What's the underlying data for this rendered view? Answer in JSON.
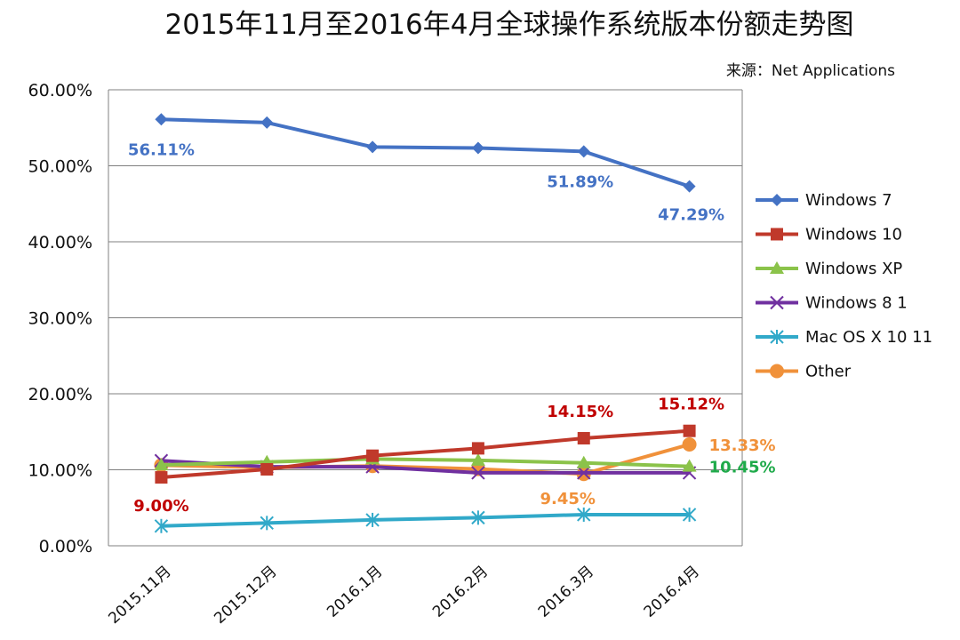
{
  "chart_data": {
    "type": "line",
    "title": "2015年11月至2016年4月全球操作系统版本份额走势图",
    "source": "来源：Net Applications",
    "categories": [
      "2015.11月",
      "2015.12月",
      "2016.1月",
      "2016.2月",
      "2016.3月",
      "2016.4月"
    ],
    "yticks": [
      "0.00%",
      "10.00%",
      "20.00%",
      "30.00%",
      "40.00%",
      "50.00%",
      "60.00%"
    ],
    "ylim": [
      0,
      60
    ],
    "grid": true,
    "legend_position": "right",
    "series": [
      {
        "name": "Windows 7",
        "color": "#4472c4",
        "marker": "diamond",
        "values": [
          56.11,
          55.68,
          52.47,
          52.34,
          51.89,
          47.29
        ]
      },
      {
        "name": "Windows 10",
        "color": "#c0392b",
        "marker": "square",
        "values": [
          9.0,
          10.06,
          11.85,
          12.82,
          14.15,
          15.12
        ]
      },
      {
        "name": "Windows XP",
        "color": "#8bc34a",
        "marker": "triangle",
        "values": [
          10.63,
          11.03,
          11.42,
          11.24,
          10.9,
          10.45
        ]
      },
      {
        "name": "Windows 8 1",
        "color": "#7030a0",
        "marker": "x",
        "values": [
          11.2,
          10.4,
          10.4,
          9.6,
          9.6,
          9.6
        ]
      },
      {
        "name": "Mac OS X 10 11",
        "color": "#31a9c9",
        "marker": "star",
        "values": [
          2.6,
          3.0,
          3.4,
          3.7,
          4.1,
          4.1
        ]
      },
      {
        "name": "Other",
        "color": "#f0913a",
        "marker": "circle",
        "values": [
          10.6,
          10.3,
          10.5,
          10.1,
          9.45,
          13.33
        ]
      }
    ],
    "annotations": [
      {
        "text": "56.11%",
        "color": "#4472c4"
      },
      {
        "text": "51.89%",
        "color": "#4472c4"
      },
      {
        "text": "47.29%",
        "color": "#4472c4"
      },
      {
        "text": "14.15%",
        "color": "#c00000"
      },
      {
        "text": "15.12%",
        "color": "#c00000"
      },
      {
        "text": "9.00%",
        "color": "#c00000"
      },
      {
        "text": "13.33%",
        "color": "#f0913a"
      },
      {
        "text": "10.45%",
        "color": "#1faa4a"
      },
      {
        "text": "9.45%",
        "color": "#f0913a"
      }
    ]
  }
}
